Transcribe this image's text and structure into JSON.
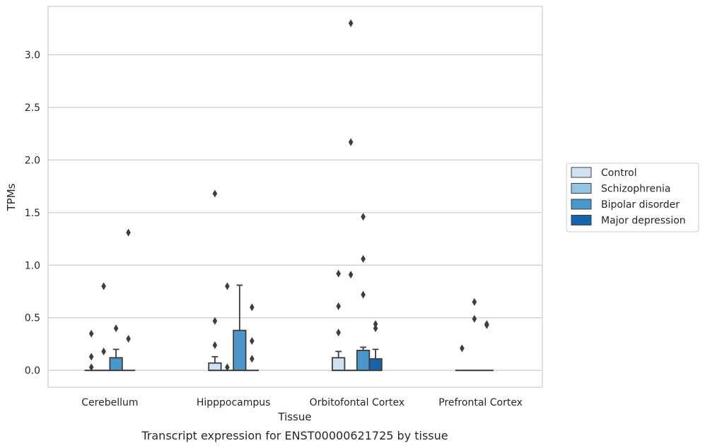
{
  "chart_data": {
    "type": "box",
    "xlabel": "Tissue",
    "ylabel": "TPMs",
    "caption": "Transcript expression for ENST00000621725 by tissue",
    "ylim": [
      -0.16,
      3.46
    ],
    "yticks": [
      "0.0",
      "0.5",
      "1.0",
      "1.5",
      "2.0",
      "2.5",
      "3.0"
    ],
    "grid": "horizontal",
    "legend_position": "right",
    "categories": [
      "Cerebellum",
      "Hipppocampus",
      "Orbitofontal Cortex",
      "Prefrontal Cortex"
    ],
    "series": [
      {
        "name": "Control",
        "color": "#d0e1f2",
        "boxes": [
          {
            "q1": 0,
            "median": 0,
            "q3": 0,
            "whisker_low": 0,
            "whisker_high": 0,
            "outliers": [
              0.35,
              0.13,
              0.03
            ]
          },
          {
            "q1": 0,
            "median": 0,
            "q3": 0.07,
            "whisker_low": 0,
            "whisker_high": 0.13,
            "outliers": [
              0.47,
              0.24,
              1.68
            ]
          },
          {
            "q1": 0,
            "median": 0,
            "q3": 0.12,
            "whisker_low": 0,
            "whisker_high": 0.18,
            "outliers": [
              0.92,
              0.61,
              0.36
            ]
          },
          {
            "q1": 0,
            "median": 0,
            "q3": 0,
            "whisker_low": 0,
            "whisker_high": 0,
            "outliers": [
              0.21
            ]
          }
        ]
      },
      {
        "name": "Schizophrenia",
        "color": "#94c4df",
        "boxes": [
          {
            "q1": 0,
            "median": 0,
            "q3": 0,
            "whisker_low": 0,
            "whisker_high": 0,
            "outliers": [
              0.8,
              0.18
            ]
          },
          {
            "q1": 0,
            "median": 0,
            "q3": 0,
            "whisker_low": 0,
            "whisker_high": 0,
            "outliers": [
              0.8,
              0.03
            ]
          },
          {
            "q1": 0,
            "median": 0,
            "q3": 0,
            "whisker_low": 0,
            "whisker_high": 0,
            "outliers": [
              3.3,
              2.17,
              0.91
            ]
          },
          {
            "q1": 0,
            "median": 0,
            "q3": 0,
            "whisker_low": 0,
            "whisker_high": 0,
            "outliers": [
              0.65,
              0.49
            ]
          }
        ]
      },
      {
        "name": "Bipolar disorder",
        "color": "#4a98c9",
        "boxes": [
          {
            "q1": 0,
            "median": 0,
            "q3": 0.12,
            "whisker_low": 0,
            "whisker_high": 0.2,
            "outliers": [
              0.4
            ]
          },
          {
            "q1": 0,
            "median": 0,
            "q3": 0.38,
            "whisker_low": 0,
            "whisker_high": 0.81,
            "outliers": []
          },
          {
            "q1": 0,
            "median": 0,
            "q3": 0.19,
            "whisker_low": 0,
            "whisker_high": 0.22,
            "outliers": [
              1.46,
              1.06,
              0.72
            ]
          },
          {
            "q1": 0,
            "median": 0,
            "q3": 0,
            "whisker_low": 0,
            "whisker_high": 0,
            "outliers": [
              0.44,
              0.43
            ]
          }
        ]
      },
      {
        "name": "Major depression",
        "color": "#1764ab",
        "boxes": [
          {
            "q1": 0,
            "median": 0,
            "q3": 0,
            "whisker_low": 0,
            "whisker_high": 0,
            "outliers": [
              1.31,
              0.3
            ]
          },
          {
            "q1": 0,
            "median": 0,
            "q3": 0,
            "whisker_low": 0,
            "whisker_high": 0,
            "outliers": [
              0.6,
              0.28,
              0.11
            ]
          },
          {
            "q1": 0,
            "median": 0,
            "q3": 0.11,
            "whisker_low": 0,
            "whisker_high": 0.2,
            "outliers": [
              0.44,
              0.4
            ]
          },
          null
        ]
      }
    ]
  }
}
